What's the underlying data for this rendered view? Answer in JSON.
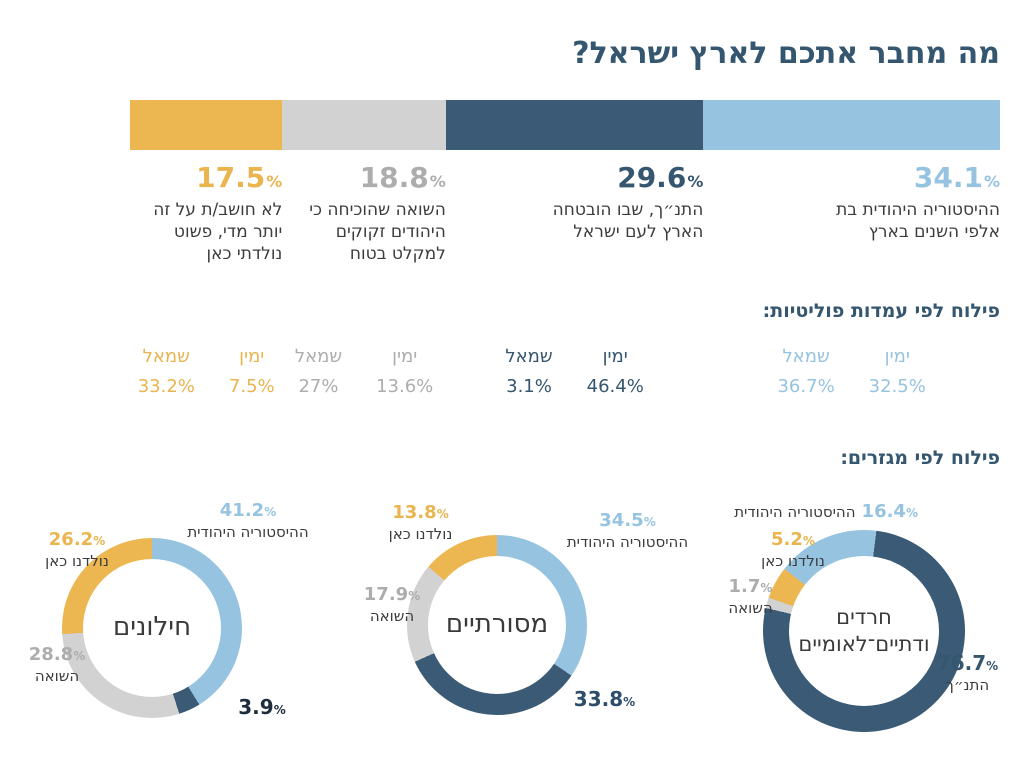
{
  "title": "מה מחבר אתכם לארץ ישראל?",
  "unit": "%",
  "headings": {
    "politics": "פילוח לפי עמדות פוליטיות:",
    "sectors": "פילוח לפי מגזרים:"
  },
  "colors": {
    "light_blue": "#96c3e0",
    "dark_blue": "#3a5a75",
    "gray": "#d2d2d2",
    "orange": "#ecb751",
    "heading": "#35566f",
    "text": "#3c3c3c"
  },
  "chart_data": [
    {
      "type": "bar",
      "subtype": "stacked-horizontal",
      "title": "מה מחבר אתכם לארץ ישראל?",
      "unit": "%",
      "politics_labels": {
        "right": "ימין",
        "left": "שמאל"
      },
      "segments": [
        {
          "name": "jewish-history",
          "label": "ההיסטוריה היהודית בת אלפי השנים בארץ",
          "value": 34.1,
          "display": "34.1",
          "color": "#96c3e0",
          "politics": {
            "right": "32.5%",
            "left": "36.7%"
          }
        },
        {
          "name": "bible",
          "label": "התנ״ך, שבו הובטחה הארץ לעם ישראל",
          "value": 29.6,
          "display": "29.6",
          "color": "#3a5a75",
          "politics": {
            "right": "46.4%",
            "left": "3.1%"
          }
        },
        {
          "name": "holocaust",
          "label": "השואה שהוכיחה כי היהודים זקוקים למקלט בטוח",
          "value": 18.8,
          "display": "18.8",
          "color": "#d2d2d2",
          "politics": {
            "right": "13.6%",
            "left": "27%"
          }
        },
        {
          "name": "born-here",
          "label": "לא חושב/ת על זה יותר מדי, פשוט נולדתי כאן",
          "value": 17.5,
          "display": "17.5",
          "color": "#ecb751",
          "politics": {
            "right": "7.5%",
            "left": "33.2%"
          }
        }
      ]
    },
    {
      "type": "pie",
      "subtype": "donut",
      "title": "חילונים",
      "unit": "%",
      "rotation": 0,
      "slices": [
        {
          "name": "jewish-history",
          "label": "ההיסטוריה היהודית",
          "value": 41.2,
          "display": "41.2",
          "color": "#96c3e0"
        },
        {
          "name": "bible",
          "value": 3.9,
          "display": "3.9",
          "color": "#3a5a75"
        },
        {
          "name": "holocaust",
          "label": "השואה",
          "value": 28.8,
          "display": "28.8",
          "color": "#d2d2d2"
        },
        {
          "name": "born-here",
          "label": "נולדנו כאן",
          "value": 26.2,
          "display": "26.2",
          "color": "#ecb751"
        }
      ]
    },
    {
      "type": "pie",
      "subtype": "donut",
      "title": "מסורתיים",
      "unit": "%",
      "rotation": 0,
      "slices": [
        {
          "name": "jewish-history",
          "label": "ההיסטוריה היהודית",
          "value": 34.5,
          "display": "34.5",
          "color": "#96c3e0"
        },
        {
          "name": "bible",
          "value": 33.8,
          "display": "33.8",
          "color": "#3a5a75"
        },
        {
          "name": "holocaust",
          "label": "השואה",
          "value": 17.9,
          "display": "17.9",
          "color": "#d2d2d2"
        },
        {
          "name": "born-here",
          "label": "נולדנו כאן",
          "value": 13.8,
          "display": "13.8",
          "color": "#ecb751"
        }
      ]
    },
    {
      "type": "pie",
      "subtype": "donut",
      "title": "חרדים\nודתיים־לאומיים",
      "unit": "%",
      "rotation": -52,
      "slices": [
        {
          "name": "jewish-history",
          "label": "ההיסטוריה היהודית",
          "value": 16.4,
          "display": "16.4",
          "color": "#96c3e0"
        },
        {
          "name": "bible",
          "label": "התנ״ך",
          "value": 76.7,
          "display": "76.7",
          "color": "#3a5a75"
        },
        {
          "name": "holocaust",
          "label": "השואה",
          "value": 1.7,
          "display": "1.7",
          "color": "#d2d2d2"
        },
        {
          "name": "born-here",
          "label": "נולדנו כאן",
          "value": 5.2,
          "display": "5.2",
          "color": "#ecb751"
        }
      ]
    }
  ]
}
